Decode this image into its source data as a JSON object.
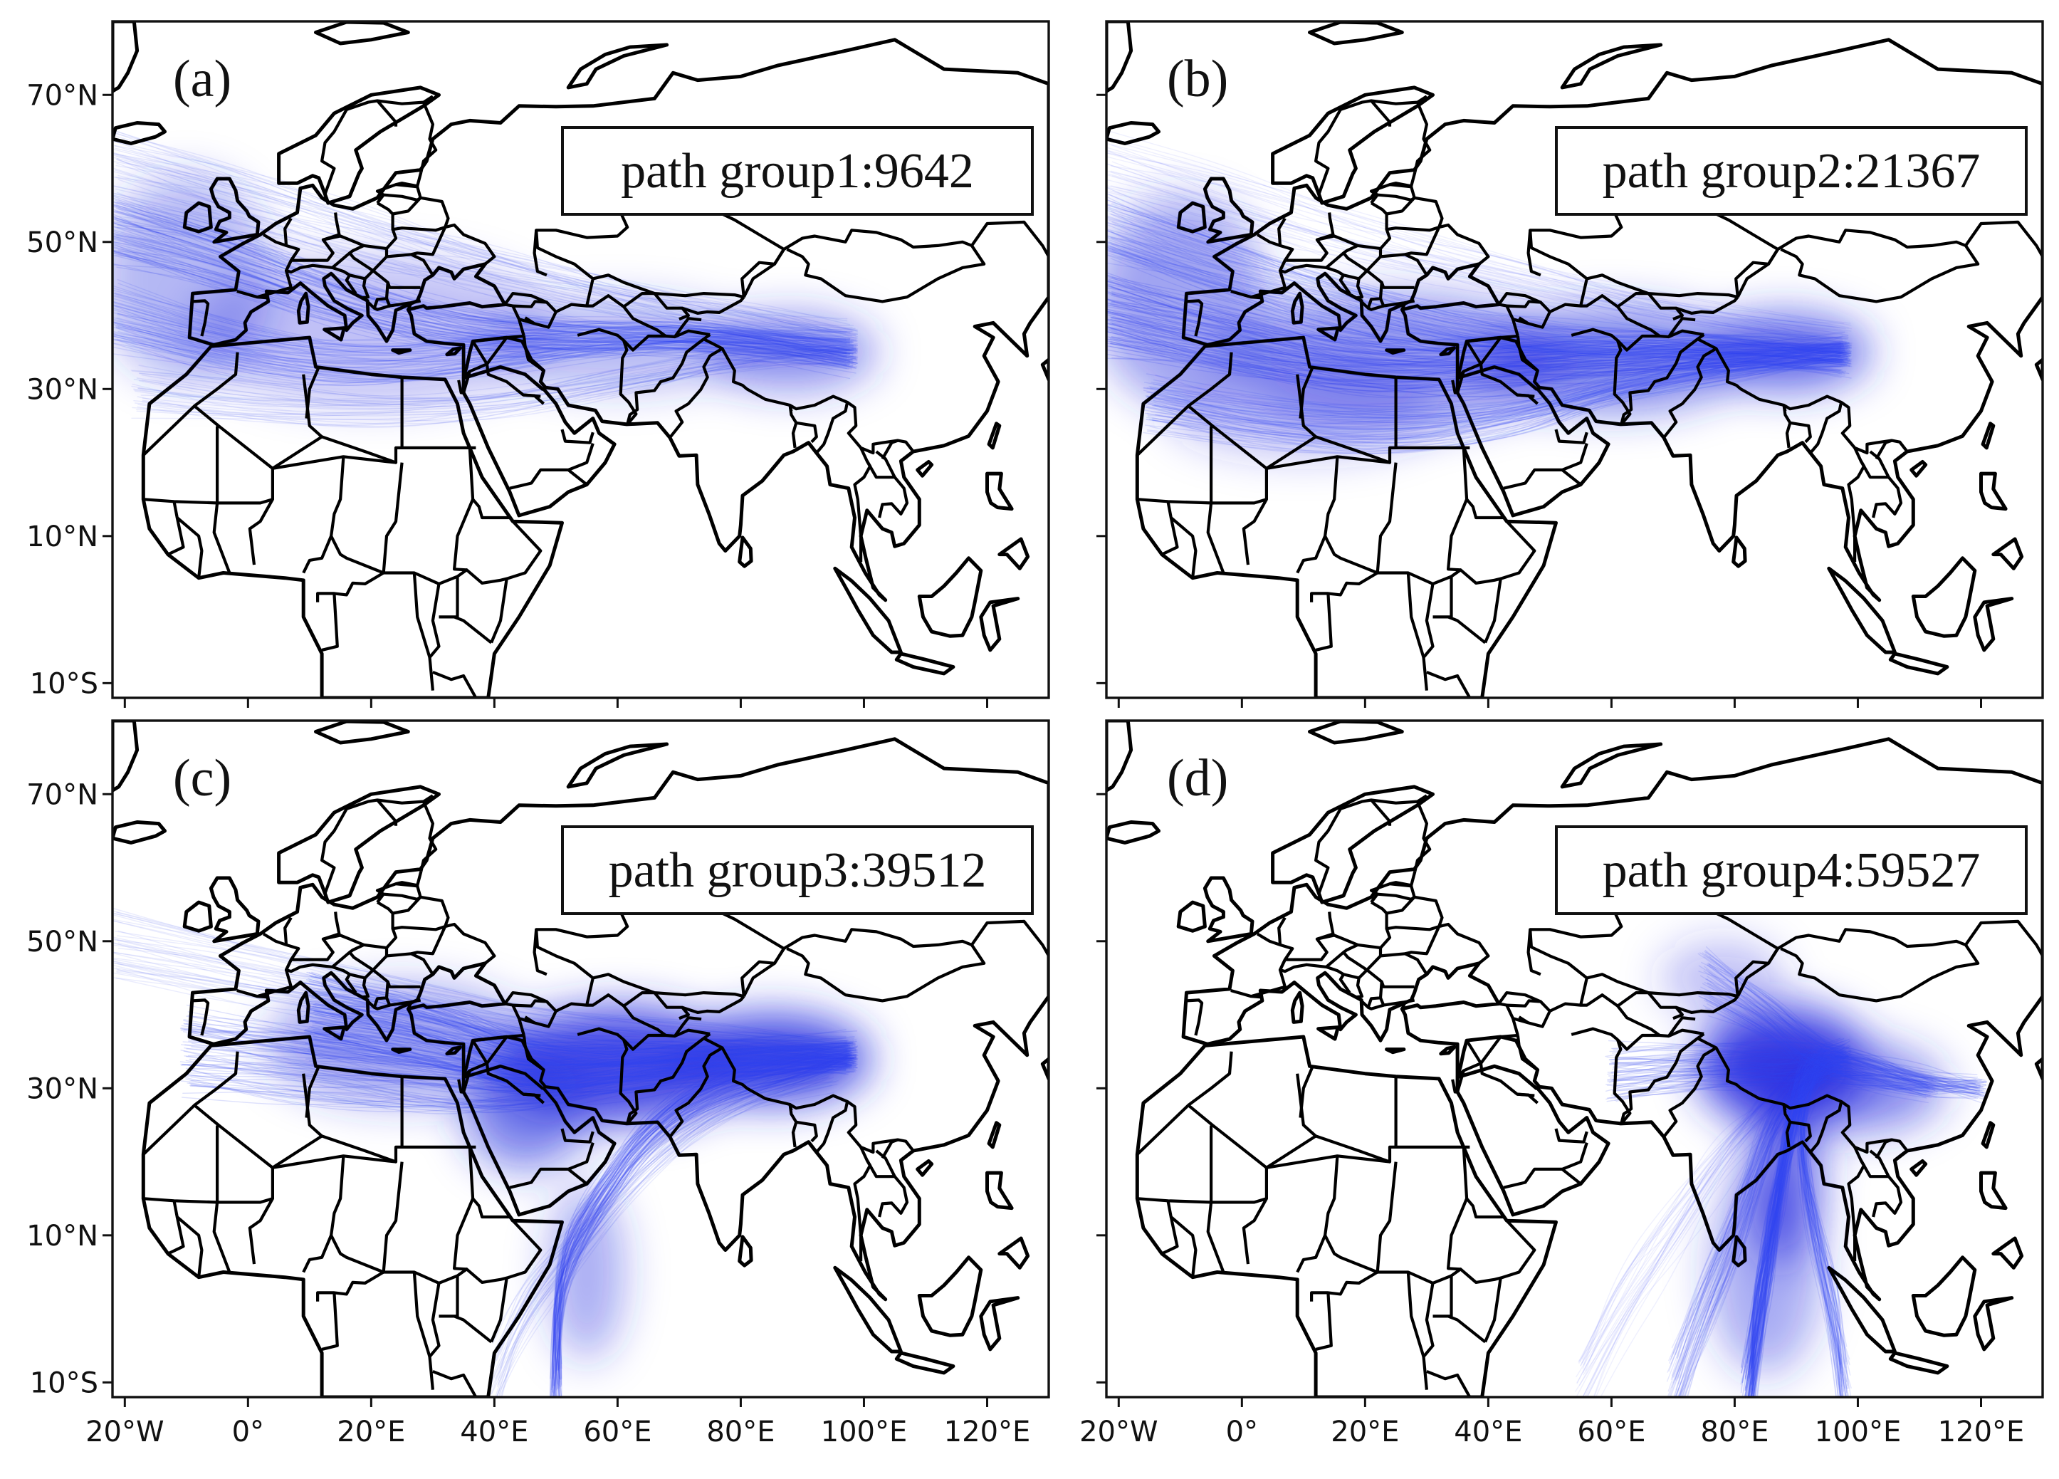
{
  "figure": {
    "panels": [
      {
        "letter": "(a)",
        "legend": "path group1:9642",
        "group": 1,
        "count": 9642
      },
      {
        "letter": "(b)",
        "legend": "path group2:21367",
        "group": 2,
        "count": 21367
      },
      {
        "letter": "(c)",
        "legend": "path group3:39512",
        "group": 3,
        "count": 39512
      },
      {
        "letter": "(d)",
        "legend": "path group4:59527",
        "group": 4,
        "count": 59527
      }
    ],
    "lat_ticks": [
      {
        "lat": 70,
        "label": "70°N"
      },
      {
        "lat": 50,
        "label": "50°N"
      },
      {
        "lat": 30,
        "label": "30°N"
      },
      {
        "lat": 10,
        "label": "10°N"
      },
      {
        "lat": -10,
        "label": "10°S"
      }
    ],
    "lon_ticks": [
      {
        "lon": -20,
        "label": "20°W"
      },
      {
        "lon": 0,
        "label": "0°"
      },
      {
        "lon": 20,
        "label": "20°E"
      },
      {
        "lon": 40,
        "label": "40°E"
      },
      {
        "lon": 60,
        "label": "60°E"
      },
      {
        "lon": 80,
        "label": "80°E"
      },
      {
        "lon": 100,
        "label": "100°E"
      },
      {
        "lon": 120,
        "label": "120°E"
      }
    ],
    "extent": {
      "lon_min": -22,
      "lon_max": 130,
      "lat_min": -12,
      "lat_max": 80
    },
    "colors": {
      "track": "#3344ee",
      "land_outline": "#000000",
      "background": "#ffffff"
    }
  }
}
